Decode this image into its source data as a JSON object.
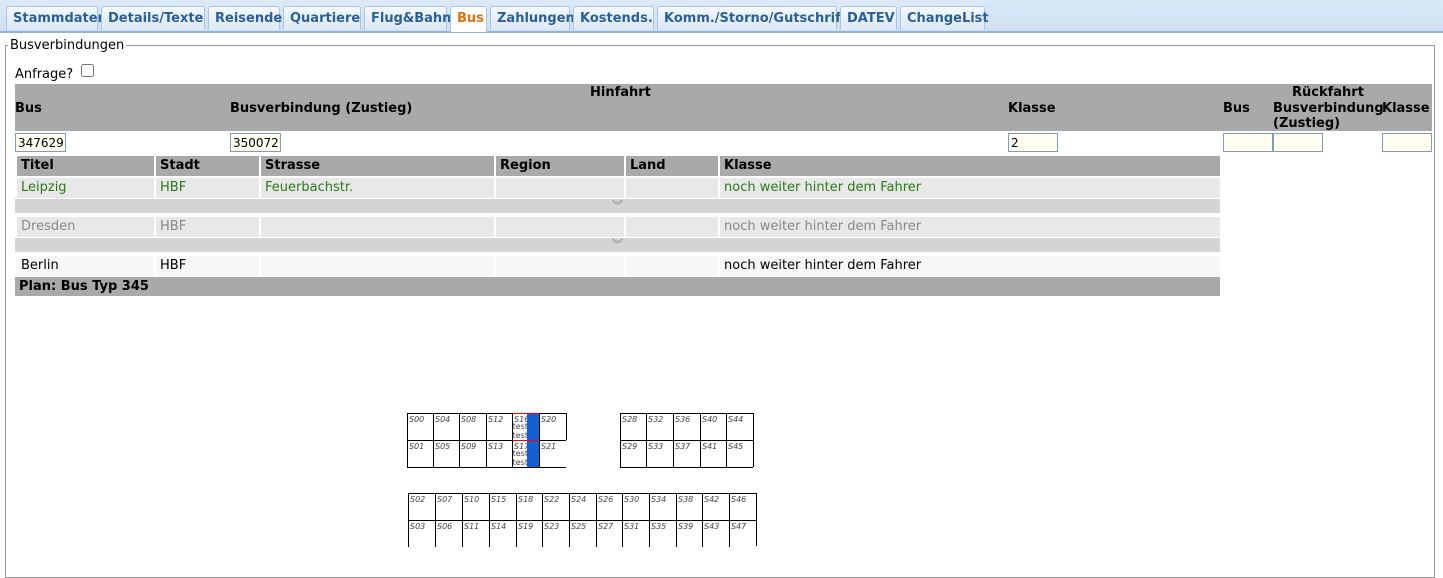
{
  "tabs": [
    {
      "label": "Stammdaten",
      "active": false
    },
    {
      "label": "Details/Texte",
      "active": false
    },
    {
      "label": "Reisende",
      "active": false
    },
    {
      "label": "Quartiere",
      "active": false
    },
    {
      "label": "Flug&Bahn",
      "active": false
    },
    {
      "label": "Bus",
      "active": true
    },
    {
      "label": "Zahlungen",
      "active": false
    },
    {
      "label": "Kostends.",
      "active": false
    },
    {
      "label": "Komm./Storno/Gutschrift",
      "active": false
    },
    {
      "label": "DATEV",
      "active": false
    },
    {
      "label": "ChangeList",
      "active": false
    }
  ],
  "section": {
    "legend": "Busverbindungen",
    "anfrage_label": "Anfrage?",
    "anfrage_checked": false
  },
  "hinfahrt": {
    "title": "Hinfahrt",
    "bus_label": "Bus",
    "verbindung_label": "Busverbindung (Zustieg)",
    "klasse_label": "Klasse",
    "bus_value": "347629",
    "verbindung_value": "350072",
    "klasse_value": "2"
  },
  "rueckfahrt": {
    "title": "Rückfahrt",
    "bus_label": "Bus",
    "verbindung_label": "Busverbindung (Zustieg)",
    "klasse_label": "Klasse",
    "bus_value": "",
    "verbindung_value": "",
    "klasse_value": ""
  },
  "stops": {
    "columns": [
      "Titel",
      "Stadt",
      "Strasse",
      "Region",
      "Land",
      "Klasse"
    ],
    "rows": [
      {
        "cells": [
          "Leipzig",
          "HBF",
          "Feuerbachstr.",
          "",
          "",
          "noch weiter hinter dem Fahrer"
        ],
        "color": "#2a7a1a"
      },
      {
        "cells": [
          "Dresden",
          "HBF",
          "",
          "",
          "",
          "noch weiter hinter dem Fahrer"
        ],
        "color": "#888888"
      },
      {
        "cells": [
          "Berlin",
          "HBF",
          "",
          "",
          "",
          "noch weiter hinter dem Fahrer"
        ],
        "color": "#000000"
      }
    ],
    "separator_icon": "double-chevron-down-icon"
  },
  "plan": {
    "title": "Plan: Bus Typ 345",
    "seats_top_upper": [
      "S00",
      "S04",
      "S08",
      "S12",
      "S16",
      "S20"
    ],
    "seats_top_lower": [
      "S01",
      "S05",
      "S09",
      "S13",
      "S17",
      "S21"
    ],
    "seats_right_upper": [
      "S28",
      "S32",
      "S36",
      "S40",
      "S44"
    ],
    "seats_right_lower": [
      "S29",
      "S33",
      "S37",
      "S41",
      "S45"
    ],
    "seats_bottom_upper": [
      "S02",
      "S07",
      "S10",
      "S15",
      "S18",
      "S22",
      "S24",
      "S26",
      "S30",
      "S34",
      "S38",
      "S42",
      "S46"
    ],
    "seats_bottom_lower": [
      "S03",
      "S06",
      "S11",
      "S14",
      "S19",
      "S23",
      "S25",
      "S27",
      "S31",
      "S35",
      "S39",
      "S43",
      "S47"
    ],
    "occupied": {
      "S16": [
        "test",
        "test"
      ],
      "S17": [
        "test",
        "test"
      ]
    },
    "occupied_color": "#1560d0"
  }
}
